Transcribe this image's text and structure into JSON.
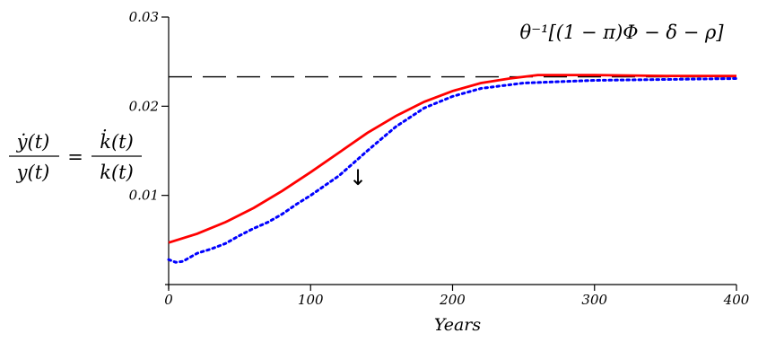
{
  "chart_data": {
    "type": "line",
    "xlabel": "Years",
    "ylabel_lhs": {
      "num": "ẏ(t)",
      "den": "y(t)"
    },
    "ylabel_rhs": {
      "num": "k̇(t)",
      "den": "k(t)"
    },
    "ylabel_eq": "=",
    "annotation_formula": "θ⁻¹[(1 − π)Φ − δ − ρ]",
    "annotation_arrow": "↓",
    "xlim": [
      0,
      400
    ],
    "ylim": [
      0,
      0.03
    ],
    "x_ticks": [
      {
        "value": 0,
        "label": "0"
      },
      {
        "value": 100,
        "label": "100"
      },
      {
        "value": 200,
        "label": "200"
      },
      {
        "value": 300,
        "label": "300"
      },
      {
        "value": 400,
        "label": "400"
      }
    ],
    "y_ticks": [
      {
        "value": 0.01,
        "label": "0.01"
      },
      {
        "value": 0.02,
        "label": "0.02"
      },
      {
        "value": 0.03,
        "label": "0.03"
      }
    ],
    "asymptote": 0.0233,
    "series": [
      {
        "style": "solid",
        "color": "#ff0000",
        "x": [
          0,
          20,
          40,
          60,
          80,
          100,
          120,
          140,
          160,
          180,
          200,
          220,
          240,
          260,
          300,
          350,
          400
        ],
        "y": [
          0.0047,
          0.0057,
          0.007,
          0.0086,
          0.0105,
          0.0126,
          0.0148,
          0.017,
          0.0189,
          0.0205,
          0.0217,
          0.0226,
          0.0231,
          0.0235,
          0.0235,
          0.0234,
          0.0234
        ]
      },
      {
        "style": "dotted",
        "color": "#0000ff",
        "x": [
          0,
          5,
          10,
          20,
          30,
          40,
          50,
          60,
          70,
          80,
          90,
          100,
          110,
          120,
          130,
          140,
          160,
          180,
          200,
          220,
          250,
          300,
          350,
          400
        ],
        "y": [
          0.0028,
          0.0025,
          0.0026,
          0.0035,
          0.004,
          0.0046,
          0.0055,
          0.0063,
          0.007,
          0.0079,
          0.009,
          0.01,
          0.0111,
          0.0122,
          0.0136,
          0.015,
          0.0177,
          0.0198,
          0.0211,
          0.022,
          0.0226,
          0.0229,
          0.023,
          0.0231
        ]
      }
    ]
  }
}
